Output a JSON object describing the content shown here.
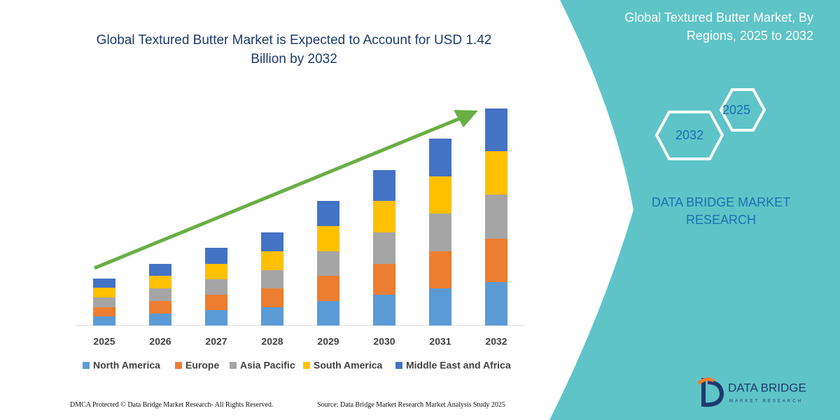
{
  "chart_data": {
    "type": "stacked_bar",
    "title": "Global Textured Butter Market is Expected to Account for USD 1.42 Billion by 2032",
    "categories": [
      "2025",
      "2026",
      "2027",
      "2028",
      "2029",
      "2030",
      "2031",
      "2032"
    ],
    "series": [
      {
        "name": "North America",
        "color": "#5b9bd5",
        "values": [
          13,
          17,
          22,
          26,
          35,
          44,
          53,
          62
        ]
      },
      {
        "name": "Europe",
        "color": "#ed7d31",
        "values": [
          13,
          18,
          22,
          27,
          36,
          44,
          53,
          62
        ]
      },
      {
        "name": "Asia Pacific",
        "color": "#a5a5a5",
        "values": [
          14,
          18,
          22,
          26,
          35,
          45,
          54,
          63
        ]
      },
      {
        "name": "South America",
        "color": "#ffc000",
        "values": [
          14,
          18,
          22,
          27,
          36,
          45,
          53,
          62
        ]
      },
      {
        "name": "Middle East and Africa",
        "color": "#4472c4",
        "values": [
          13,
          17,
          23,
          27,
          36,
          44,
          54,
          61
        ]
      }
    ],
    "ylim": [
      0,
      310
    ]
  },
  "panel": {
    "title": "Global Textured Butter Market, By Regions, 2025 to 2032",
    "hexagons": [
      "2025",
      "2032"
    ],
    "brand": "DATA BRIDGE MARKET RESEARCH"
  },
  "footer": {
    "left": "DMCA Protected © Data Bridge Market Research- All Rights Reserved.",
    "right": "Source: Data Bridge Market Research Market Analysis Study 2025"
  },
  "logo": {
    "name": "DATA BRIDGE",
    "tagline": "MARKET RESEARCH"
  }
}
